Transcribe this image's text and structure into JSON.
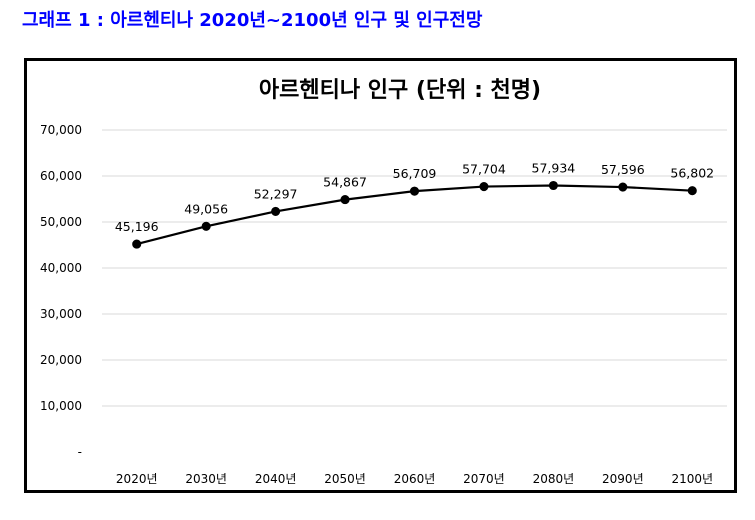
{
  "page": {
    "title": "그래프 1 : 아르헨티나 2020년~2100년 인구 및 인구전망"
  },
  "colors": {
    "heading": "#0000ff",
    "line": "#000000",
    "marker": "#000000",
    "grid": "#d9d9d9",
    "frame": "#000000"
  },
  "chart_data": {
    "type": "line",
    "title": "아르헨티나 인구 (단위 : 천명)",
    "categories": [
      "2020년",
      "2030년",
      "2040년",
      "2050년",
      "2060년",
      "2070년",
      "2080년",
      "2090년",
      "2100년"
    ],
    "series": [
      {
        "values": [
          45196,
          49056,
          52297,
          54867,
          56709,
          57704,
          57934,
          57596,
          56802
        ],
        "labels": [
          "45,196",
          "49,056",
          "52,297",
          "54,867",
          "56,709",
          "57,704",
          "57,934",
          "57,596",
          "56,802"
        ]
      }
    ],
    "ylim": [
      0,
      70000
    ],
    "yticks": [
      0,
      10000,
      20000,
      30000,
      40000,
      50000,
      60000,
      70000
    ],
    "ytick_labels": [
      "-",
      "10,000",
      "20,000",
      "30,000",
      "40,000",
      "50,000",
      "60,000",
      "70,000"
    ],
    "grid": true,
    "legend": "none",
    "xlabel": "",
    "ylabel": ""
  }
}
